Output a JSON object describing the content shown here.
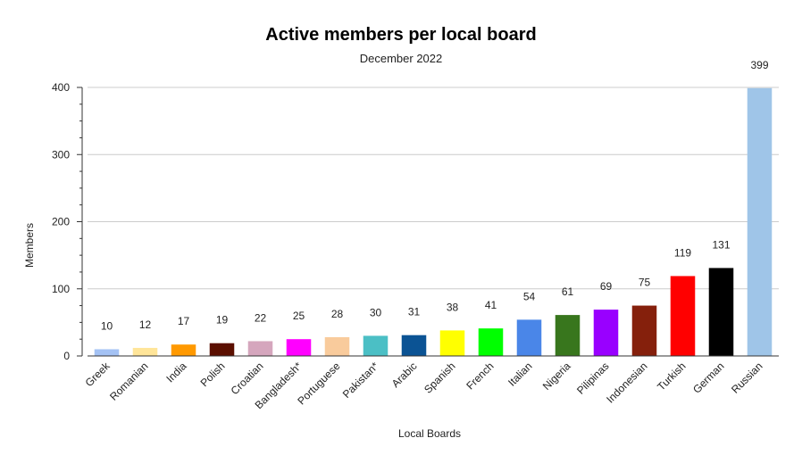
{
  "chart_data": {
    "type": "bar",
    "title": "Active members per local board",
    "subtitle": "December 2022",
    "xlabel": "Local Boards",
    "ylabel": "Members",
    "ylim": [
      0,
      400
    ],
    "yticks": [
      0,
      100,
      200,
      300,
      400
    ],
    "grid": true,
    "legend": "none",
    "categories": [
      "Greek",
      "Romanian",
      "India",
      "Polish",
      "Croatian",
      "Bangladesh*",
      "Portuguese",
      "Pakistan*",
      "Arabic",
      "Spanish",
      "French",
      "Italian",
      "Nigeria",
      "Pilipinas",
      "Indonesian",
      "Turkish",
      "German",
      "Russian"
    ],
    "values": [
      10,
      12,
      17,
      19,
      22,
      25,
      28,
      30,
      31,
      38,
      41,
      54,
      61,
      69,
      75,
      119,
      131,
      399
    ],
    "colors": [
      "#a4c2f4",
      "#ffe599",
      "#ff9900",
      "#5b0f00",
      "#d5a6bd",
      "#ff00ff",
      "#f9cb9c",
      "#4bbfc5",
      "#0b5394",
      "#ffff00",
      "#00ff00",
      "#4a86e8",
      "#38761d",
      "#9900ff",
      "#85200c",
      "#ff0000",
      "#000000",
      "#9fc5e8"
    ]
  }
}
